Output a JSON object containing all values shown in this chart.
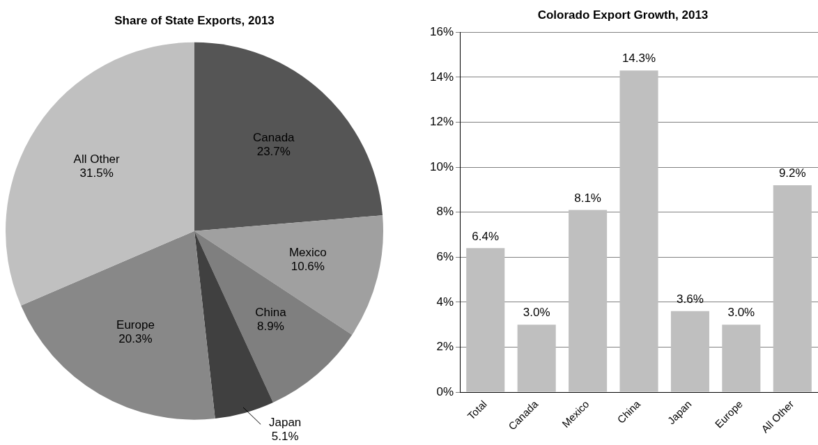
{
  "chart_data": [
    {
      "type": "pie",
      "title": "Share of State Exports, 2013",
      "categories": [
        "Canada",
        "Mexico",
        "China",
        "Japan",
        "Europe",
        "All Other"
      ],
      "values": [
        23.7,
        10.6,
        8.9,
        5.1,
        20.3,
        31.5
      ],
      "colors": [
        "#555555",
        "#a0a0a0",
        "#7f7f7f",
        "#404040",
        "#888888",
        "#c0c0c0"
      ],
      "value_labels": [
        "23.7%",
        "10.6%",
        "8.9%",
        "5.1%",
        "20.3%",
        "31.5%"
      ],
      "legend": false
    },
    {
      "type": "bar",
      "title": "Colorado Export Growth, 2013",
      "categories": [
        "Total",
        "Canada",
        "Mexico",
        "China",
        "Japan",
        "Europe",
        "All Other"
      ],
      "values": [
        6.4,
        3.0,
        8.1,
        14.3,
        3.6,
        3.0,
        9.2
      ],
      "color": "#bfbfbf",
      "value_labels": [
        "6.4%",
        "3.0%",
        "8.1%",
        "14.3%",
        "3.6%",
        "3.0%",
        "9.2%"
      ],
      "ylim": [
        0,
        16
      ],
      "yticks": [
        {
          "value": 0,
          "label": "0%"
        },
        {
          "value": 2,
          "label": "2%"
        },
        {
          "value": 4,
          "label": "4%"
        },
        {
          "value": 6,
          "label": "6%"
        },
        {
          "value": 8,
          "label": "8%"
        },
        {
          "value": 10,
          "label": "10%"
        },
        {
          "value": 12,
          "label": "12%"
        },
        {
          "value": 14,
          "label": "14%"
        },
        {
          "value": 16,
          "label": "16%"
        }
      ],
      "grid": "y",
      "legend": false
    }
  ]
}
